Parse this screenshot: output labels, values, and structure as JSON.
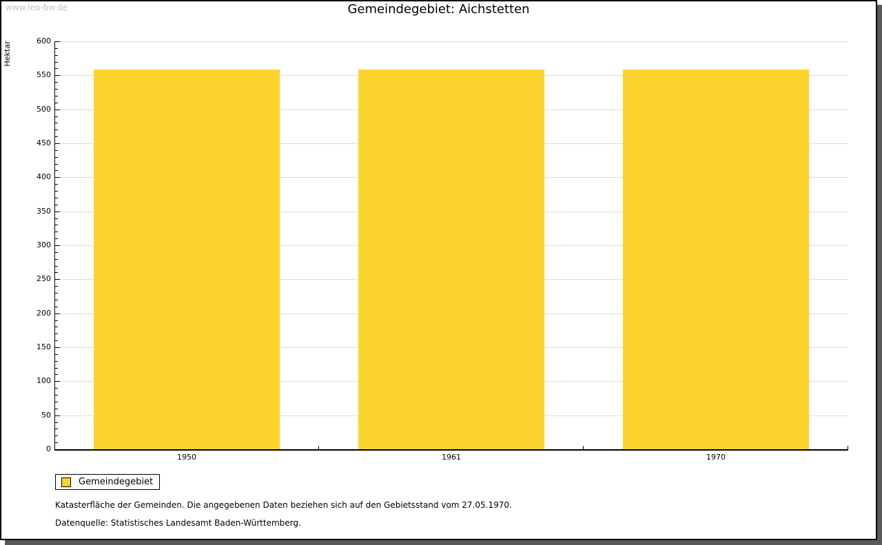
{
  "watermark": "www.leo-bw.de",
  "chart_data": {
    "type": "bar",
    "title": "Gemeindegebiet: Aichstetten",
    "ylabel": "Hektar",
    "xlabel": "",
    "categories": [
      "1950",
      "1961",
      "1970"
    ],
    "series": [
      {
        "name": "Gemeindegebiet",
        "values": [
          558,
          558,
          558
        ]
      }
    ],
    "ylim": [
      0,
      600
    ],
    "ytick_major": 50,
    "ytick_minor": 10,
    "grid": true,
    "legend_position": "bottom-left",
    "bar_color": "#FCD42D",
    "grid_color": "#DCDCDC"
  },
  "legend": {
    "label": "Gemeindegebiet"
  },
  "footnotes": {
    "line1": "Katasterfläche der Gemeinden. Die angegebenen Daten beziehen sich auf den Gebietsstand vom 27.05.1970.",
    "line2": "Datenquelle: Statistisches Landesamt Baden-Württemberg."
  }
}
